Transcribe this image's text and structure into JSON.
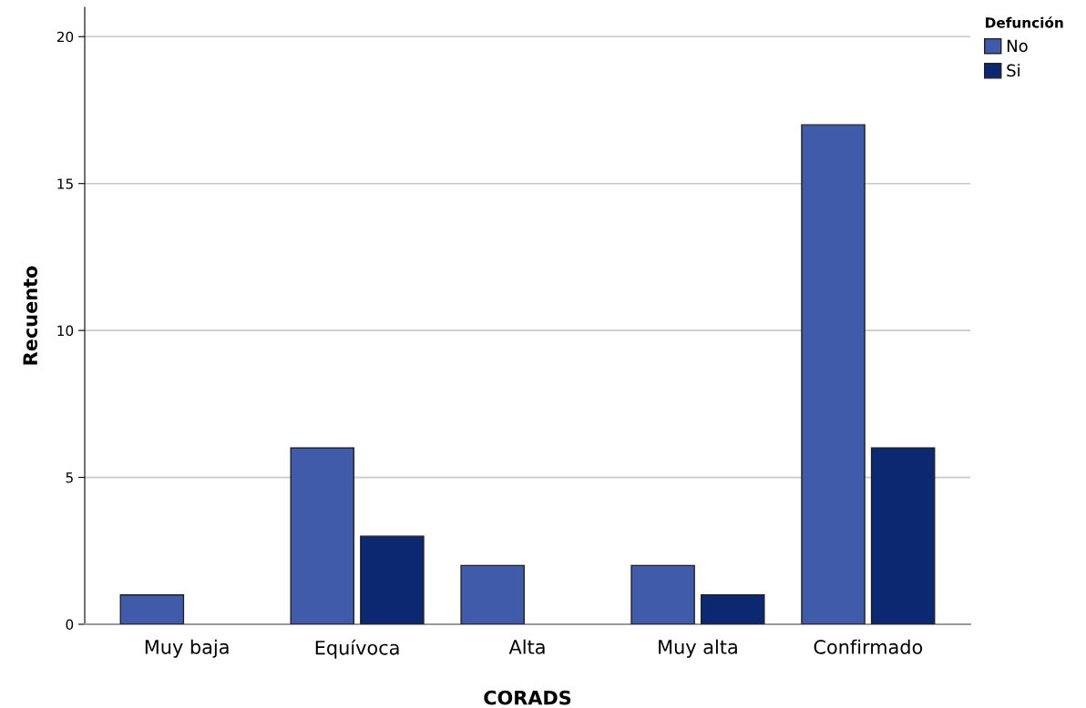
{
  "chart_data": {
    "type": "bar",
    "xlabel": "CORADS",
    "ylabel": "Recuento",
    "legend_title": "Defunción",
    "categories": [
      "Muy baja",
      "Equívoca",
      "Alta",
      "Muy alta",
      "Confirmado"
    ],
    "series": [
      {
        "name": "No",
        "color": "#3f5ba9",
        "values": [
          1,
          6,
          2,
          2,
          17
        ]
      },
      {
        "name": "Si",
        "color": "#0c2870",
        "values": [
          null,
          3,
          null,
          1,
          6
        ]
      }
    ],
    "ylim": [
      0,
      21
    ],
    "yticks": [
      0,
      5,
      10,
      15,
      20
    ],
    "grid": "y",
    "legend": "top right"
  }
}
